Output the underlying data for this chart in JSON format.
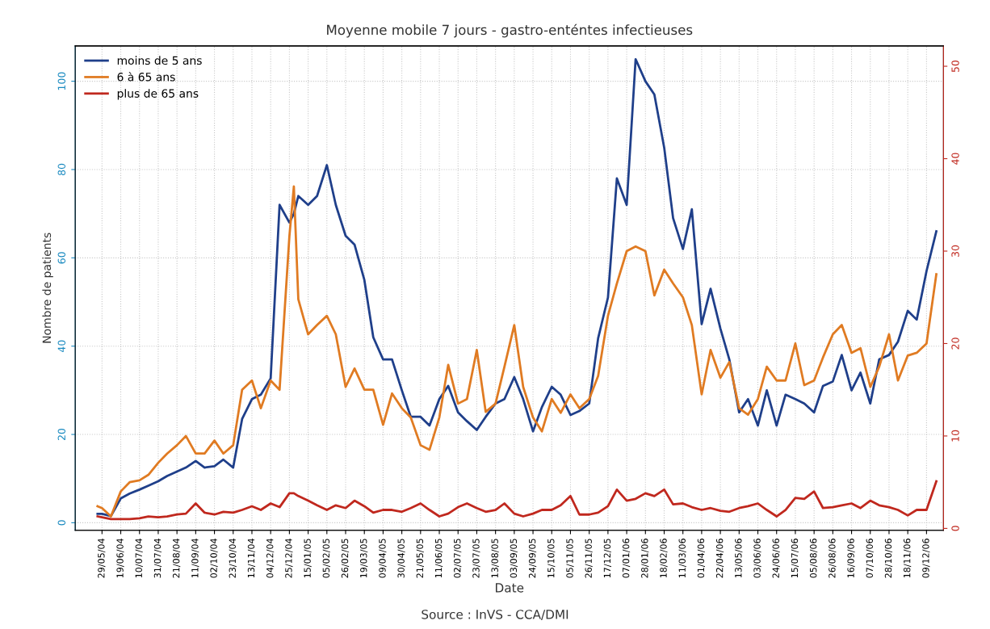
{
  "chart_data": {
    "type": "line",
    "title": "Moyenne mobile 7 jours - gastro-enténtes infectieuses",
    "xlabel": "Date",
    "ylabel": "Nombre de patients",
    "annotations": [
      "Source : InVS - CCA/DMI"
    ],
    "x": [
      "2004-05-24",
      "2004-05-29",
      "2004-06-08",
      "2004-06-19",
      "2004-06-29",
      "2004-07-10",
      "2004-07-20",
      "2004-07-31",
      "2004-08-10",
      "2004-08-21",
      "2004-08-31",
      "2004-09-11",
      "2004-09-21",
      "2004-10-02",
      "2004-10-12",
      "2004-10-23",
      "2004-11-02",
      "2004-11-13",
      "2004-11-23",
      "2004-12-04",
      "2004-12-14",
      "2004-12-25",
      "2004-12-30",
      "2005-01-04",
      "2005-01-15",
      "2005-01-25",
      "2005-02-05",
      "2005-02-15",
      "2005-02-26",
      "2005-03-08",
      "2005-03-19",
      "2005-03-29",
      "2005-04-09",
      "2005-04-19",
      "2005-04-30",
      "2005-05-10",
      "2005-05-21",
      "2005-05-31",
      "2005-06-11",
      "2005-06-21",
      "2005-07-02",
      "2005-07-12",
      "2005-07-23",
      "2005-08-02",
      "2005-08-13",
      "2005-08-23",
      "2005-09-03",
      "2005-09-13",
      "2005-09-24",
      "2005-10-04",
      "2005-10-15",
      "2005-10-25",
      "2005-11-05",
      "2005-11-15",
      "2005-11-26",
      "2005-12-06",
      "2005-12-17",
      "2005-12-27",
      "2006-01-07",
      "2006-01-17",
      "2006-01-28",
      "2006-02-07",
      "2006-02-18",
      "2006-02-28",
      "2006-03-11",
      "2006-03-21",
      "2006-04-01",
      "2006-04-11",
      "2006-04-22",
      "2006-05-02",
      "2006-05-13",
      "2006-05-23",
      "2006-06-03",
      "2006-06-13",
      "2006-06-24",
      "2006-07-04",
      "2006-07-15",
      "2006-07-25",
      "2006-08-05",
      "2006-08-15",
      "2006-08-26",
      "2006-09-05",
      "2006-09-16",
      "2006-09-26",
      "2006-10-07",
      "2006-10-17",
      "2006-10-28",
      "2006-11-07",
      "2006-11-18",
      "2006-11-28",
      "2006-12-09",
      "2006-12-20"
    ],
    "series": [
      {
        "name": "moins de 5 ans",
        "color": "#1f3f8a",
        "values": [
          2,
          2,
          1.5,
          5.5,
          6.6,
          7.5,
          8.4,
          9.4,
          10.6,
          11.6,
          12.5,
          14,
          12.5,
          12.8,
          14.3,
          12.5,
          23.5,
          28,
          29,
          32.7,
          72,
          68,
          70,
          74,
          72,
          74,
          81,
          72,
          65,
          63,
          55,
          42,
          37,
          37,
          30,
          24,
          24,
          22,
          28,
          31,
          25,
          23,
          21,
          24,
          27,
          28,
          33,
          28,
          20.7,
          26.2,
          30.8,
          29,
          24.4,
          25.3,
          27,
          41.8,
          51,
          78,
          72,
          105,
          100,
          97,
          85,
          69,
          62,
          71,
          45,
          53,
          44,
          37,
          25,
          28,
          22,
          30,
          22,
          29,
          28,
          27,
          25,
          31,
          32,
          38,
          30,
          34,
          27,
          37,
          38,
          41,
          48,
          46,
          57,
          66
        ]
      },
      {
        "name": "6 à 65 ans",
        "color": "#e07b22",
        "axis": "y2",
        "values": [
          2.4,
          2.2,
          1.3,
          4,
          5,
          5.2,
          5.8,
          7.1,
          8.1,
          9,
          10,
          8.1,
          8.1,
          9.5,
          8.1,
          9,
          15,
          16,
          13,
          16,
          15,
          31.6,
          37,
          24.8,
          21,
          22,
          23,
          21,
          15.3,
          17.3,
          15,
          15,
          11.2,
          14.6,
          13,
          12,
          9,
          8.5,
          12,
          17.7,
          13.5,
          14,
          19.3,
          12.6,
          13.5,
          17.5,
          22,
          15.3,
          12,
          10.5,
          14,
          12.5,
          14.5,
          13,
          14,
          16.5,
          23,
          26.5,
          30,
          30.5,
          30,
          25.2,
          28,
          26.5,
          25,
          22,
          14.5,
          19.3,
          16.3,
          18,
          13,
          12.3,
          14,
          17.5,
          16,
          16,
          20,
          15.5,
          16,
          18.5,
          21,
          22,
          19,
          19.5,
          15.3,
          17.5,
          21,
          16,
          18.7,
          19,
          20,
          27.5
        ]
      },
      {
        "name": "plus de 65 ans",
        "color": "#c0281e",
        "axis": "y2",
        "values": [
          1.3,
          1.2,
          1,
          1,
          1,
          1.1,
          1.3,
          1.2,
          1.3,
          1.5,
          1.6,
          2.7,
          1.7,
          1.5,
          1.8,
          1.7,
          2,
          2.4,
          2,
          2.7,
          2.3,
          3.8,
          3.8,
          3.5,
          3,
          2.5,
          2,
          2.5,
          2.2,
          3,
          2.4,
          1.7,
          2,
          2,
          1.8,
          2.2,
          2.7,
          2,
          1.3,
          1.6,
          2.3,
          2.7,
          2.2,
          1.8,
          2,
          2.7,
          1.6,
          1.3,
          1.6,
          2,
          2,
          2.5,
          3.5,
          1.5,
          1.5,
          1.7,
          2.4,
          4.2,
          3,
          3.2,
          3.8,
          3.5,
          4.2,
          2.6,
          2.7,
          2.3,
          2,
          2.2,
          1.9,
          1.8,
          2.2,
          2.4,
          2.7,
          2,
          1.3,
          2,
          3.3,
          3.2,
          4,
          2.2,
          2.3,
          2.5,
          2.7,
          2.2,
          3,
          2.5,
          2.3,
          2,
          1.4,
          2,
          2,
          5.1
        ]
      }
    ],
    "xlim": [
      "2004-04-29",
      "2006-12-28"
    ],
    "xticks": [
      {
        "value": "2004-05-29",
        "label": "29/05/04"
      },
      {
        "value": "2004-06-19",
        "label": "19/06/04"
      },
      {
        "value": "2004-07-10",
        "label": "10/07/04"
      },
      {
        "value": "2004-07-31",
        "label": "31/07/04"
      },
      {
        "value": "2004-08-21",
        "label": "21/08/04"
      },
      {
        "value": "2004-09-11",
        "label": "11/09/04"
      },
      {
        "value": "2004-10-02",
        "label": "02/10/04"
      },
      {
        "value": "2004-10-23",
        "label": "23/10/04"
      },
      {
        "value": "2004-11-13",
        "label": "13/11/04"
      },
      {
        "value": "2004-12-04",
        "label": "04/12/04"
      },
      {
        "value": "2004-12-25",
        "label": "25/12/04"
      },
      {
        "value": "2005-01-15",
        "label": "15/01/05"
      },
      {
        "value": "2005-02-05",
        "label": "05/02/05"
      },
      {
        "value": "2005-02-26",
        "label": "26/02/05"
      },
      {
        "value": "2005-03-19",
        "label": "19/03/05"
      },
      {
        "value": "2005-04-09",
        "label": "09/04/05"
      },
      {
        "value": "2005-04-30",
        "label": "30/04/05"
      },
      {
        "value": "2005-05-21",
        "label": "21/05/05"
      },
      {
        "value": "2005-06-11",
        "label": "11/06/05"
      },
      {
        "value": "2005-07-02",
        "label": "02/07/05"
      },
      {
        "value": "2005-07-23",
        "label": "23/07/05"
      },
      {
        "value": "2005-08-13",
        "label": "13/08/05"
      },
      {
        "value": "2005-09-03",
        "label": "03/09/05"
      },
      {
        "value": "2005-09-24",
        "label": "24/09/05"
      },
      {
        "value": "2005-10-15",
        "label": "15/10/05"
      },
      {
        "value": "2005-11-05",
        "label": "05/11/05"
      },
      {
        "value": "2005-11-26",
        "label": "26/11/05"
      },
      {
        "value": "2005-12-17",
        "label": "17/12/05"
      },
      {
        "value": "2006-01-07",
        "label": "07/01/06"
      },
      {
        "value": "2006-01-28",
        "label": "28/01/06"
      },
      {
        "value": "2006-02-18",
        "label": "18/02/06"
      },
      {
        "value": "2006-03-11",
        "label": "11/03/06"
      },
      {
        "value": "2006-04-01",
        "label": "01/04/06"
      },
      {
        "value": "2006-04-22",
        "label": "22/04/06"
      },
      {
        "value": "2006-05-13",
        "label": "13/05/06"
      },
      {
        "value": "2006-06-03",
        "label": "03/06/06"
      },
      {
        "value": "2006-06-24",
        "label": "24/06/06"
      },
      {
        "value": "2006-07-15",
        "label": "15/07/06"
      },
      {
        "value": "2006-08-05",
        "label": "05/08/06"
      },
      {
        "value": "2006-08-26",
        "label": "26/08/06"
      },
      {
        "value": "2006-09-16",
        "label": "16/09/06"
      },
      {
        "value": "2006-10-07",
        "label": "07/10/06"
      },
      {
        "value": "2006-10-28",
        "label": "28/10/06"
      },
      {
        "value": "2006-11-18",
        "label": "18/11/06"
      },
      {
        "value": "2006-12-09",
        "label": "09/12/06"
      }
    ],
    "ylim": [
      -1.7,
      108
    ],
    "yticks": [
      0,
      20,
      40,
      60,
      80,
      100
    ],
    "y2lim": [
      -0.2,
      52.2
    ],
    "y2ticks": [
      0,
      10,
      20,
      30,
      40,
      50
    ],
    "grid": true,
    "legend": "top left",
    "marker": "none",
    "line_style": "solid"
  }
}
